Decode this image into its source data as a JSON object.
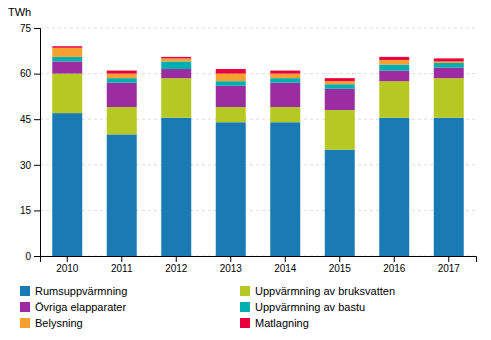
{
  "chart_data": {
    "type": "bar",
    "stacked": true,
    "y_label": "TWh",
    "categories": [
      "2010",
      "2011",
      "2012",
      "2013",
      "2014",
      "2015",
      "2016",
      "2017"
    ],
    "series": [
      {
        "name": "Rumsuppvärmning",
        "color": "#1a7ab4",
        "values": [
          47,
          40,
          45.5,
          44,
          44,
          35,
          45.5,
          45.5
        ]
      },
      {
        "name": "Uppvärmning av bruksvatten",
        "color": "#b5c922",
        "values": [
          13,
          9,
          13,
          5,
          5,
          13,
          12,
          13
        ]
      },
      {
        "name": "Övriga elapparater",
        "color": "#9b2da0",
        "values": [
          4,
          8,
          3,
          7,
          8,
          7,
          3.5,
          3.5
        ]
      },
      {
        "name": "Uppvärmning av bastu",
        "color": "#00b0b0",
        "values": [
          1.5,
          1.5,
          2.5,
          1.5,
          1.5,
          1.5,
          2,
          1.5
        ]
      },
      {
        "name": "Belysning",
        "color": "#f5a030",
        "values": [
          3,
          1.5,
          1,
          2.5,
          1.5,
          1,
          1.5,
          0.5
        ]
      },
      {
        "name": "Matlagning",
        "color": "#e8003a",
        "values": [
          0.5,
          1,
          0.5,
          1.5,
          1,
          1,
          1,
          1
        ]
      }
    ],
    "ylim": [
      0,
      75
    ],
    "yticks": [
      0,
      15,
      30,
      45,
      60,
      75
    ],
    "grid": true,
    "legend": "bottom"
  }
}
